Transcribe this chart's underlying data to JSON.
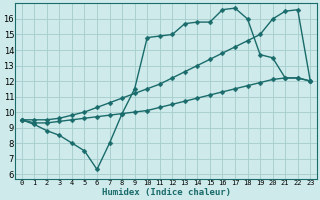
{
  "xlabel": "Humidex (Indice chaleur)",
  "bg_color": "#ceeaea",
  "grid_color": "#aad0d0",
  "line_color": "#1a6b6b",
  "xlim": [
    -0.5,
    23.5
  ],
  "ylim": [
    5.7,
    17.0
  ],
  "xticks": [
    0,
    1,
    2,
    3,
    4,
    5,
    6,
    7,
    8,
    9,
    10,
    11,
    12,
    13,
    14,
    15,
    16,
    17,
    18,
    19,
    20,
    21,
    22,
    23
  ],
  "yticks": [
    6,
    7,
    8,
    9,
    10,
    11,
    12,
    13,
    14,
    15,
    16
  ],
  "line1_x": [
    0,
    1,
    2,
    3,
    4,
    5,
    6,
    7,
    8,
    9,
    10,
    11,
    12,
    13,
    14,
    15,
    16,
    17,
    18,
    19,
    20,
    21,
    22,
    23
  ],
  "line1_y": [
    9.5,
    9.2,
    8.8,
    8.5,
    8.0,
    7.5,
    6.3,
    8.0,
    9.9,
    11.5,
    14.8,
    14.9,
    15.0,
    15.7,
    15.8,
    15.8,
    16.6,
    16.7,
    16.0,
    13.7,
    13.5,
    12.2,
    12.2,
    12.0
  ],
  "line2_x": [
    0,
    1,
    2,
    3,
    4,
    5,
    6,
    7,
    8,
    9,
    10,
    11,
    12,
    13,
    14,
    15,
    16,
    17,
    18,
    19,
    20,
    21,
    22,
    23
  ],
  "line2_y": [
    9.5,
    9.5,
    9.5,
    9.6,
    9.8,
    10.0,
    10.3,
    10.6,
    10.9,
    11.2,
    11.5,
    11.8,
    12.2,
    12.6,
    13.0,
    13.4,
    13.8,
    14.2,
    14.6,
    15.0,
    16.0,
    16.5,
    16.6,
    12.0
  ],
  "line3_x": [
    0,
    1,
    2,
    3,
    4,
    5,
    6,
    7,
    8,
    9,
    10,
    11,
    12,
    13,
    14,
    15,
    16,
    17,
    18,
    19,
    20,
    21,
    22,
    23
  ],
  "line3_y": [
    9.5,
    9.3,
    9.3,
    9.4,
    9.5,
    9.6,
    9.7,
    9.8,
    9.9,
    10.0,
    10.1,
    10.3,
    10.5,
    10.7,
    10.9,
    11.1,
    11.3,
    11.5,
    11.7,
    11.9,
    12.1,
    12.2,
    12.2,
    12.0
  ],
  "markersize": 2.5,
  "linewidth": 1.0
}
